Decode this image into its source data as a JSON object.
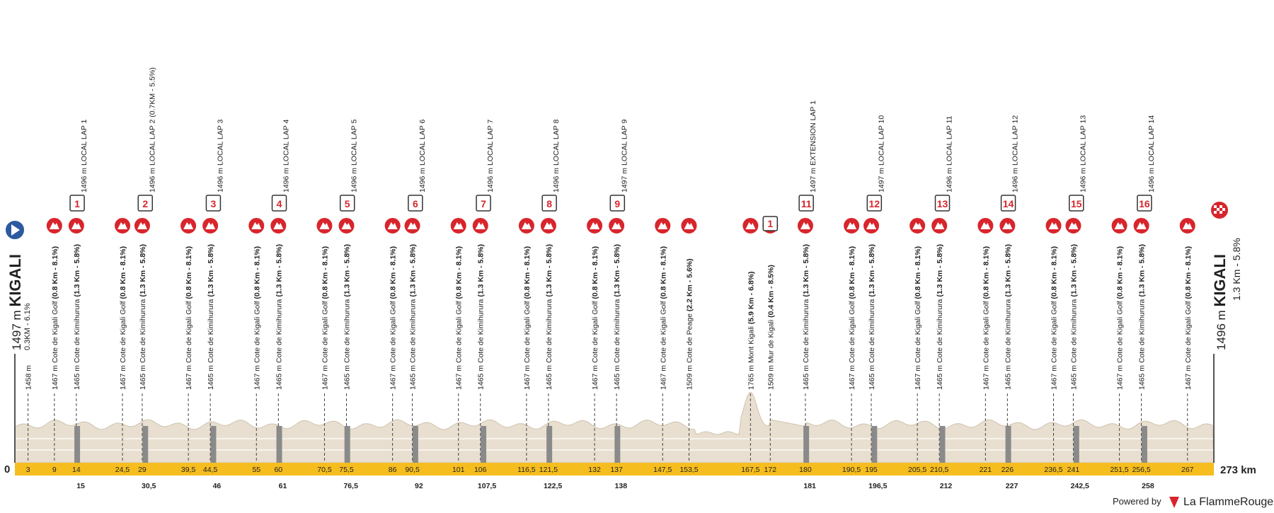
{
  "start": {
    "elevation": "1497 m",
    "name": "KIGALI",
    "note": "0.3KM - 6.1%",
    "km": "0"
  },
  "finish": {
    "elevation": "1496 m",
    "name": "KIGALI",
    "note": "1.3 Km - 5.8%",
    "km": "273 km"
  },
  "points": [
    {
      "km": "3",
      "name": "1458 m"
    },
    {
      "km": "9",
      "name": "1467 m Cote de Kigali Golf",
      "detail": "(0.8 Km - 8.1%)"
    },
    {
      "km": "14",
      "name": "1465 m Cote de Kimihurura",
      "detail": "(1.3 Km - 5.8%)"
    },
    {
      "km": "24,5",
      "name": "1467 m Cote de Kigali Golf",
      "detail": "(0.8 Km - 8.1%)"
    },
    {
      "km": "29",
      "name": "1465 m Cote de Kimihurura",
      "detail": "(1.3 Km - 5.8%)"
    },
    {
      "km": "39,5",
      "name": "1467 m Cote de Kigali Golf",
      "detail": "(0.8 Km - 8.1%)"
    },
    {
      "km": "44,5",
      "name": "1465 m Cote de Kimihurura",
      "detail": "(1.3 Km - 5.8%)"
    },
    {
      "km": "55",
      "name": "1467 m Cote de Kigali Golf",
      "detail": "(0.8 Km - 8.1%)"
    },
    {
      "km": "60",
      "name": "1465 m Cote de Kimihurura",
      "detail": "(1.3 Km - 5.8%)"
    },
    {
      "km": "70,5",
      "name": "1467 m Cote de Kigali Golf",
      "detail": "(0.8 Km - 8.1%)"
    },
    {
      "km": "75,5",
      "name": "1465 m Cote de Kimihurura",
      "detail": "(1.3 Km - 5.8%)"
    },
    {
      "km": "86",
      "name": "1467 m Cote de Kigali Golf",
      "detail": "(0.8 Km - 8.1%)"
    },
    {
      "km": "90,5",
      "name": "1465 m Cote de Kimihurura",
      "detail": "(1.3 Km - 5.8%)"
    },
    {
      "km": "101",
      "name": "1467 m Cote de Kigali Golf",
      "detail": "(0.8 Km - 8.1%)"
    },
    {
      "km": "106",
      "name": "1465 m Cote de Kimihurura",
      "detail": "(1.3 Km - 5.8%)"
    },
    {
      "km": "116,5",
      "name": "1467 m Cote de Kigali Golf",
      "detail": "(0.8 Km - 8.1%)"
    },
    {
      "km": "121,5",
      "name": "1465 m Cote de Kimihurura",
      "detail": "(1.3 Km - 5.8%)"
    },
    {
      "km": "132",
      "name": "1467 m Cote de Kigali Golf",
      "detail": "(0.8 Km - 8.1%)"
    },
    {
      "km": "137",
      "name": "1465 m Cote de Kimihurura",
      "detail": "(1.3 Km - 5.8%)"
    },
    {
      "km": "147,5",
      "name": "1467 m Cote de Kigali Golf",
      "detail": "(0.8 Km - 8.1%)"
    },
    {
      "km": "153,5",
      "name": "1509 m Cote de Peage",
      "detail": "(2.2 Km - 5.6%)"
    },
    {
      "km": "167,5",
      "name": "1765 m Mont Kigali",
      "detail": "(5.9 Km - 6.8%)"
    },
    {
      "km": "172",
      "name": "1509 m Mur de Kigali",
      "detail": "(0.4 Km - 8.5%)",
      "badge": "1"
    },
    {
      "km": "180",
      "name": "1465 m Cote de Kimihurura",
      "detail": "(1.3 Km - 5.8%)"
    },
    {
      "km": "190,5",
      "name": "1467 m Cote de Kigali Golf",
      "detail": "(0.8 Km - 8.1%)"
    },
    {
      "km": "195",
      "name": "1465 m Cote de Kimihurura",
      "detail": "(1.3 Km - 5.8%)"
    },
    {
      "km": "205,5",
      "name": "1467 m Cote de Kigali Golf",
      "detail": "(0.8 Km - 8.1%)"
    },
    {
      "km": "210,5",
      "name": "1465 m Cote de Kimihurura",
      "detail": "(1.3 Km - 5.8%)"
    },
    {
      "km": "221",
      "name": "1467 m Cote de Kigali Golf",
      "detail": "(0.8 Km - 8.1%)"
    },
    {
      "km": "226",
      "name": "1465 m Cote de Kimihurura",
      "detail": "(1.3 Km - 5.8%)"
    },
    {
      "km": "236,5",
      "name": "1467 m Cote de Kigali Golf",
      "detail": "(0.8 Km - 8.1%)"
    },
    {
      "km": "241",
      "name": "1465 m Cote de Kimihurura",
      "detail": "(1.3 Km - 5.8%)"
    },
    {
      "km": "251,5",
      "name": "1467 m Cote de Kigali Golf",
      "detail": "(0.8 Km - 8.1%)"
    },
    {
      "km": "256,5",
      "name": "1465 m Cote de Kimihurura",
      "detail": "(1.3 Km - 5.8%)"
    },
    {
      "km": "267",
      "name": "1467 m Cote de Kigali Golf",
      "detail": "(0.8 Km - 8.1%)"
    }
  ],
  "laps": [
    {
      "number": "1",
      "label": "1496 m LOCAL LAP 1",
      "km": "15"
    },
    {
      "number": "2",
      "label": "1496 m LOCAL LAP 2 (0.7KM - 5.5%)",
      "km": "30,5"
    },
    {
      "number": "3",
      "label": "1496 m LOCAL LAP 3",
      "km": "46"
    },
    {
      "number": "4",
      "label": "1496 m LOCAL LAP 4",
      "km": "61"
    },
    {
      "number": "5",
      "label": "1496 m LOCAL LAP 5",
      "km": "76,5"
    },
    {
      "number": "6",
      "label": "1496 m LOCAL LAP 6",
      "km": "92"
    },
    {
      "number": "7",
      "label": "1496 m LOCAL LAP 7",
      "km": "107,5"
    },
    {
      "number": "8",
      "label": "1496 m LOCAL LAP 8",
      "km": "122,5"
    },
    {
      "number": "9",
      "label": "1497 m LOCAL LAP 9",
      "km": "138"
    },
    {
      "number": "11",
      "label": "1497 m EXTENSION LAP 1",
      "km": "181"
    },
    {
      "number": "12",
      "label": "1497 m LOCAL LAP 10",
      "km": "196,5"
    },
    {
      "number": "13",
      "label": "1496 m LOCAL LAP 11",
      "km": "212"
    },
    {
      "number": "14",
      "label": "1496 m LOCAL LAP 12",
      "km": "227"
    },
    {
      "number": "15",
      "label": "1496 m LOCAL LAP 13",
      "km": "242,5"
    },
    {
      "number": "16",
      "label": "1496 m LOCAL LAP 14",
      "km": "258"
    }
  ],
  "footer": {
    "powered": "Powered by",
    "brand": "La FlammeRouge"
  }
}
